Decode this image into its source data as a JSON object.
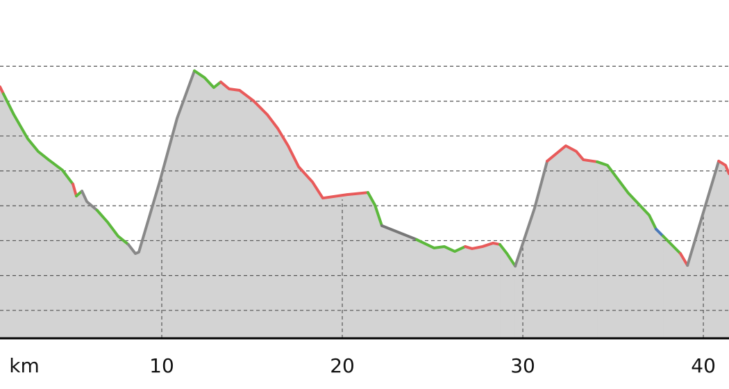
{
  "chart_data": {
    "type": "area-line",
    "x_label": "km",
    "xlim": [
      1.04,
      41.42
    ],
    "xticks": [
      10,
      20,
      30,
      40
    ],
    "ylim": [
      0.2,
      9.9
    ],
    "yticks": [
      1,
      2,
      3,
      4,
      5,
      6,
      7,
      8
    ],
    "grid": true,
    "fill": "#d3d3d3",
    "series": [
      {
        "color": "#e85a5a",
        "x": [
          1.04,
          1.23
        ],
        "values": [
          7.41,
          7.21
        ]
      },
      {
        "color": "#5cb83c",
        "x": [
          1.23,
          1.81,
          2.58,
          3.15,
          3.73,
          4.5,
          5.08
        ],
        "values": [
          7.21,
          6.61,
          5.92,
          5.56,
          5.32,
          5.02,
          4.62
        ]
      },
      {
        "color": "#e85a5a",
        "x": [
          5.08,
          5.27
        ],
        "values": [
          4.62,
          4.28
        ]
      },
      {
        "color": "#5cb83c",
        "x": [
          5.27,
          5.58
        ],
        "values": [
          4.28,
          4.42
        ]
      },
      {
        "color": "#888888",
        "x": [
          5.58,
          5.85,
          6.42
        ],
        "values": [
          4.42,
          4.12,
          3.87
        ]
      },
      {
        "color": "#5cb83c",
        "x": [
          6.42,
          7.0,
          7.58,
          8.15
        ],
        "values": [
          3.87,
          3.53,
          3.13,
          2.89
        ]
      },
      {
        "color": "#888888",
        "x": [
          8.15,
          8.54,
          8.73,
          9.88,
          10.85,
          11.81
        ],
        "values": [
          2.89,
          2.63,
          2.67,
          4.68,
          6.51,
          7.87
        ]
      },
      {
        "color": "#5cb83c",
        "x": [
          11.81,
          12.38,
          12.88,
          13.27
        ],
        "values": [
          7.87,
          7.67,
          7.39,
          7.55
        ]
      },
      {
        "color": "#e85a5a",
        "x": [
          13.27,
          13.73,
          14.31,
          15.08,
          15.85,
          16.42,
          17.0,
          17.58,
          18.35,
          18.92,
          20.27,
          21.42
        ],
        "values": [
          7.55,
          7.35,
          7.31,
          7.01,
          6.61,
          6.22,
          5.72,
          5.12,
          4.68,
          4.22,
          4.32,
          4.38
        ]
      },
      {
        "color": "#5cb83c",
        "x": [
          21.42,
          21.81,
          22.19
        ],
        "values": [
          4.38,
          4.02,
          3.43
        ]
      },
      {
        "color": "#777777",
        "x": [
          22.19,
          24.12
        ],
        "values": [
          3.43,
          3.03
        ]
      },
      {
        "color": "#5cb83c",
        "x": [
          24.12,
          25.08,
          25.65,
          26.23,
          26.81
        ],
        "values": [
          3.03,
          2.79,
          2.83,
          2.69,
          2.83
        ]
      },
      {
        "color": "#e85a5a",
        "x": [
          26.81,
          27.19,
          27.77,
          28.35,
          28.73
        ],
        "values": [
          2.83,
          2.77,
          2.83,
          2.93,
          2.89
        ]
      },
      {
        "color": "#5cb83c",
        "x": [
          28.73,
          29.12,
          29.58
        ],
        "values": [
          2.89,
          2.63,
          2.27
        ]
      },
      {
        "color": "#888888",
        "x": [
          29.58,
          30.65,
          31.35
        ],
        "values": [
          2.27,
          3.93,
          5.28
        ]
      },
      {
        "color": "#e85a5a",
        "x": [
          31.35,
          32.38,
          32.96,
          33.35,
          34.12
        ],
        "values": [
          5.28,
          5.72,
          5.56,
          5.32,
          5.26
        ]
      },
      {
        "color": "#5cb83c",
        "x": [
          34.12,
          34.69,
          35.85,
          37.0,
          37.38
        ],
        "values": [
          5.26,
          5.16,
          4.36,
          3.73,
          3.33
        ]
      },
      {
        "color": "#4a78b8",
        "x": [
          37.38,
          37.77
        ],
        "values": [
          3.33,
          3.13
        ]
      },
      {
        "color": "#5cb83c",
        "x": [
          37.77,
          38.73
        ],
        "values": [
          3.13,
          2.63
        ]
      },
      {
        "color": "#e85a5a",
        "x": [
          38.73,
          39.12
        ],
        "values": [
          2.63,
          2.29
        ]
      },
      {
        "color": "#888888",
        "x": [
          39.12,
          40.85
        ],
        "values": [
          2.29,
          5.28
        ]
      },
      {
        "color": "#e85a5a",
        "x": [
          40.85,
          41.23,
          41.42
        ],
        "values": [
          5.28,
          5.16,
          4.92
        ]
      }
    ]
  }
}
